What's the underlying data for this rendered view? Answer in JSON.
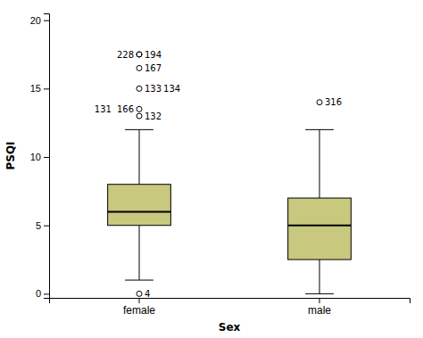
{
  "chart_data": {
    "type": "box",
    "xlabel": "Sex",
    "ylabel": "PSQI",
    "categories": [
      "female",
      "male"
    ],
    "color": "#c8c87e",
    "ylim": [
      -0.3,
      20.5
    ],
    "yticks": [
      0,
      5,
      10,
      15,
      20
    ],
    "boxes": [
      {
        "q1": 5.0,
        "median": 6.0,
        "q3": 8.0,
        "whisker_low": 1.0,
        "whisker_high": 12.0,
        "outliers": [
          0.0,
          13.0,
          13.5,
          15.0,
          16.5,
          17.5,
          17.5
        ],
        "outlier_labels": [
          "4",
          "132",
          "131   166",
          "133 134",
          "167",
          "194",
          "228"
        ]
      },
      {
        "q1": 2.5,
        "median": 5.0,
        "q3": 7.0,
        "whisker_low": 0.0,
        "whisker_high": 12.0,
        "outliers": [
          14.0
        ],
        "outlier_labels": [
          "316"
        ]
      }
    ]
  }
}
